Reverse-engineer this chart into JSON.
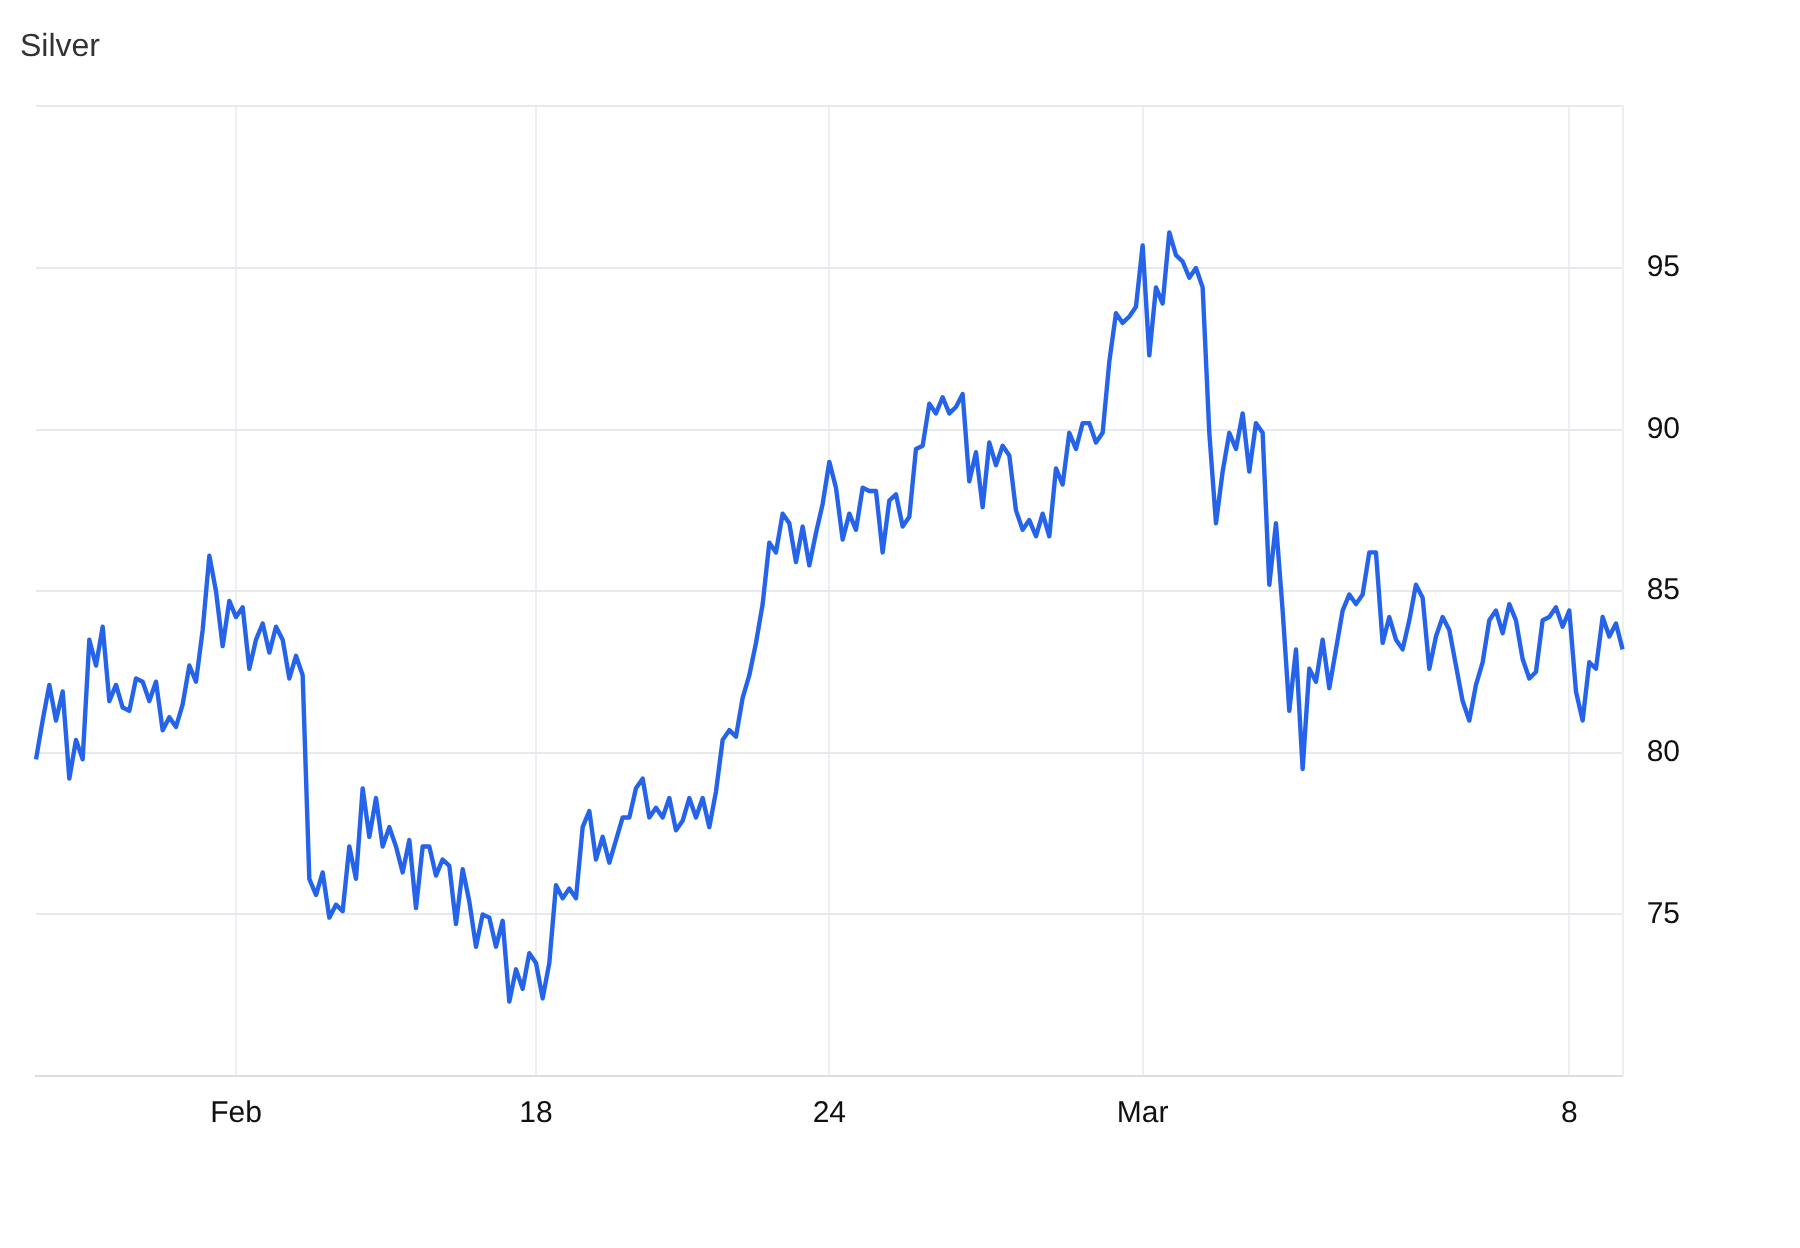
{
  "chart_data": {
    "type": "line",
    "title": "Silver",
    "categories": [
      null,
      null,
      null,
      null,
      null,
      null,
      null,
      null,
      null,
      null,
      null,
      null,
      null,
      null,
      null,
      null,
      null,
      null,
      null,
      null,
      null,
      null,
      null,
      null,
      null,
      null,
      null,
      null,
      null,
      null,
      "Feb",
      null,
      null,
      null,
      null,
      null,
      null,
      null,
      null,
      null,
      null,
      null,
      null,
      null,
      null,
      null,
      null,
      null,
      null,
      null,
      null,
      null,
      null,
      null,
      null,
      null,
      null,
      null,
      null,
      null,
      null,
      null,
      null,
      null,
      null,
      null,
      null,
      null,
      null,
      null,
      null,
      null,
      null,
      null,
      null,
      "18",
      null,
      null,
      null,
      null,
      null,
      null,
      null,
      null,
      null,
      null,
      null,
      null,
      null,
      null,
      null,
      null,
      null,
      null,
      null,
      null,
      null,
      null,
      null,
      null,
      null,
      null,
      null,
      null,
      null,
      null,
      null,
      null,
      null,
      null,
      null,
      null,
      null,
      null,
      null,
      null,
      null,
      null,
      null,
      "24",
      null,
      null,
      null,
      null,
      null,
      null,
      null,
      null,
      null,
      null,
      null,
      null,
      null,
      null,
      null,
      null,
      null,
      null,
      null,
      null,
      null,
      null,
      null,
      null,
      null,
      null,
      null,
      null,
      null,
      null,
      null,
      null,
      null,
      null,
      null,
      null,
      null,
      null,
      null,
      null,
      null,
      null,
      null,
      null,
      null,
      null,
      "Mar",
      null,
      null,
      null,
      null,
      null,
      null,
      null,
      null,
      null,
      null,
      null,
      null,
      null,
      null,
      null,
      null,
      null,
      null,
      null,
      null,
      null,
      null,
      null,
      null,
      null,
      null,
      null,
      null,
      null,
      null,
      null,
      null,
      null,
      null,
      null,
      null,
      null,
      null,
      null,
      null,
      null,
      null,
      null,
      null,
      null,
      null,
      null,
      null,
      null,
      null,
      null,
      null,
      null,
      null,
      null,
      null,
      null,
      null,
      null,
      null,
      null,
      null,
      null,
      "8",
      null,
      null,
      null,
      null,
      null,
      null,
      null,
      null
    ],
    "series": [
      {
        "color": "#2563eb",
        "values": [
          79.8,
          81.0,
          82.1,
          81.0,
          81.9,
          79.2,
          80.4,
          79.8,
          83.5,
          82.7,
          83.9,
          81.6,
          82.1,
          81.4,
          81.3,
          82.3,
          82.2,
          81.6,
          82.2,
          80.7,
          81.1,
          80.8,
          81.5,
          82.7,
          82.2,
          83.8,
          86.1,
          85.0,
          83.3,
          84.7,
          84.2,
          84.5,
          82.6,
          83.5,
          84.0,
          83.1,
          83.9,
          83.5,
          82.3,
          83.0,
          82.4,
          76.1,
          75.6,
          76.3,
          74.9,
          75.3,
          75.1,
          77.1,
          76.1,
          78.9,
          77.4,
          78.6,
          77.1,
          77.7,
          77.1,
          76.3,
          77.3,
          75.2,
          77.1,
          77.1,
          76.2,
          76.7,
          76.5,
          74.7,
          76.4,
          75.4,
          74.0,
          75.0,
          74.9,
          74.0,
          74.8,
          72.3,
          73.3,
          72.7,
          73.8,
          73.5,
          72.4,
          73.5,
          75.9,
          75.5,
          75.8,
          75.5,
          77.7,
          78.2,
          76.7,
          77.4,
          76.6,
          77.3,
          78.0,
          78.0,
          78.9,
          79.2,
          78.0,
          78.3,
          78.0,
          78.6,
          77.6,
          77.9,
          78.6,
          78.0,
          78.6,
          77.7,
          78.8,
          80.4,
          80.7,
          80.5,
          81.7,
          82.4,
          83.4,
          84.6,
          86.5,
          86.2,
          87.4,
          87.1,
          85.9,
          87.0,
          85.8,
          86.8,
          87.7,
          89.0,
          88.2,
          86.6,
          87.4,
          86.9,
          88.2,
          88.1,
          88.1,
          86.2,
          87.8,
          88.0,
          87.0,
          87.3,
          89.4,
          89.5,
          90.8,
          90.5,
          91.0,
          90.5,
          90.7,
          91.1,
          88.4,
          89.3,
          87.6,
          89.6,
          88.9,
          89.5,
          89.2,
          87.5,
          86.9,
          87.2,
          86.7,
          87.4,
          86.7,
          88.8,
          88.3,
          89.9,
          89.4,
          90.2,
          90.2,
          89.6,
          89.9,
          92.1,
          93.6,
          93.3,
          93.5,
          93.8,
          95.7,
          92.3,
          94.4,
          93.9,
          96.1,
          95.4,
          95.2,
          94.7,
          95.0,
          94.4,
          89.9,
          87.1,
          88.7,
          89.9,
          89.4,
          90.5,
          88.7,
          90.2,
          89.9,
          85.2,
          87.1,
          84.4,
          81.3,
          83.2,
          79.5,
          82.6,
          82.2,
          83.5,
          82.0,
          83.2,
          84.4,
          84.9,
          84.6,
          84.9,
          86.2,
          86.2,
          83.4,
          84.2,
          83.5,
          83.2,
          84.1,
          85.2,
          84.8,
          82.6,
          83.6,
          84.2,
          83.8,
          82.7,
          81.6,
          81.0,
          82.1,
          82.8,
          84.1,
          84.4,
          83.7,
          84.6,
          84.1,
          82.9,
          82.3,
          82.5,
          84.1,
          84.2,
          84.5,
          83.9,
          84.4,
          81.9,
          81.0,
          82.8,
          82.6,
          84.2,
          83.6,
          84.0,
          83.2
        ]
      }
    ],
    "ylim": [
      70,
      100
    ],
    "yticks": [
      {
        "value": 70,
        "label": null
      },
      75,
      80,
      85,
      90,
      95,
      {
        "value": 100,
        "label": null
      }
    ],
    "grid": true,
    "legend": false,
    "marker": "none",
    "line_style": "solid"
  }
}
